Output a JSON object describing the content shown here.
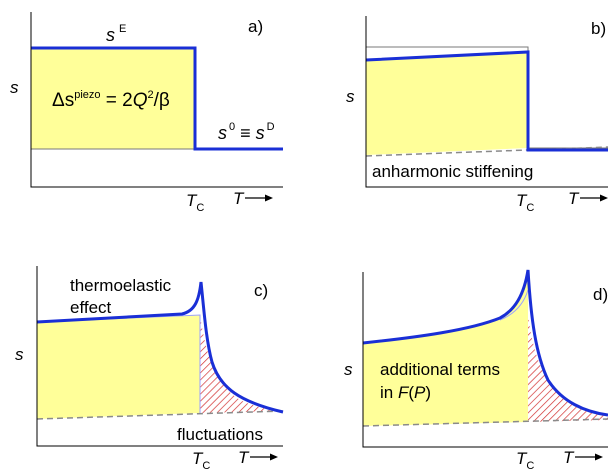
{
  "colors": {
    "fill": "#ffff99",
    "curve": "#1a2fd6",
    "hatch": "#d23030",
    "thin": "#7a7a7a",
    "dash": "#8a8a8a"
  },
  "panels": {
    "a": {
      "letter": "a)",
      "s_axis": "s",
      "sE_base": "s",
      "sE_sup": "E",
      "formula_pre": "Δs",
      "formula_sup": "piezo",
      "formula_mid": " = 2",
      "formula_Q": "Q",
      "formula_sup2": "2",
      "formula_post": "/β",
      "s0_base": "s",
      "s0_sup": "0",
      "s0_equiv": " ≡ ",
      "sD_base": "s",
      "sD_sup": "D",
      "tc_base": "T",
      "tc_sub": "C",
      "t_arrow": "T"
    },
    "b": {
      "letter": "b)",
      "s_axis": "s",
      "label": "anharmonic stiffening",
      "tc_base": "T",
      "tc_sub": "C",
      "t_arrow": "T"
    },
    "c": {
      "letter": "c)",
      "s_axis": "s",
      "label_line1": "thermoelastic",
      "label_line2": "effect",
      "label_fluct": "fluctuations",
      "tc_base": "T",
      "tc_sub": "C",
      "t_arrow": "T"
    },
    "d": {
      "letter": "d)",
      "s_axis": "s",
      "label_line1": "additional terms",
      "label_line2_pre": "in ",
      "label_line2_F": "F",
      "label_line2_open": "(",
      "label_line2_P": "P",
      "label_line2_close": ")",
      "tc_base": "T",
      "tc_sub": "C",
      "t_arrow": "T"
    }
  }
}
